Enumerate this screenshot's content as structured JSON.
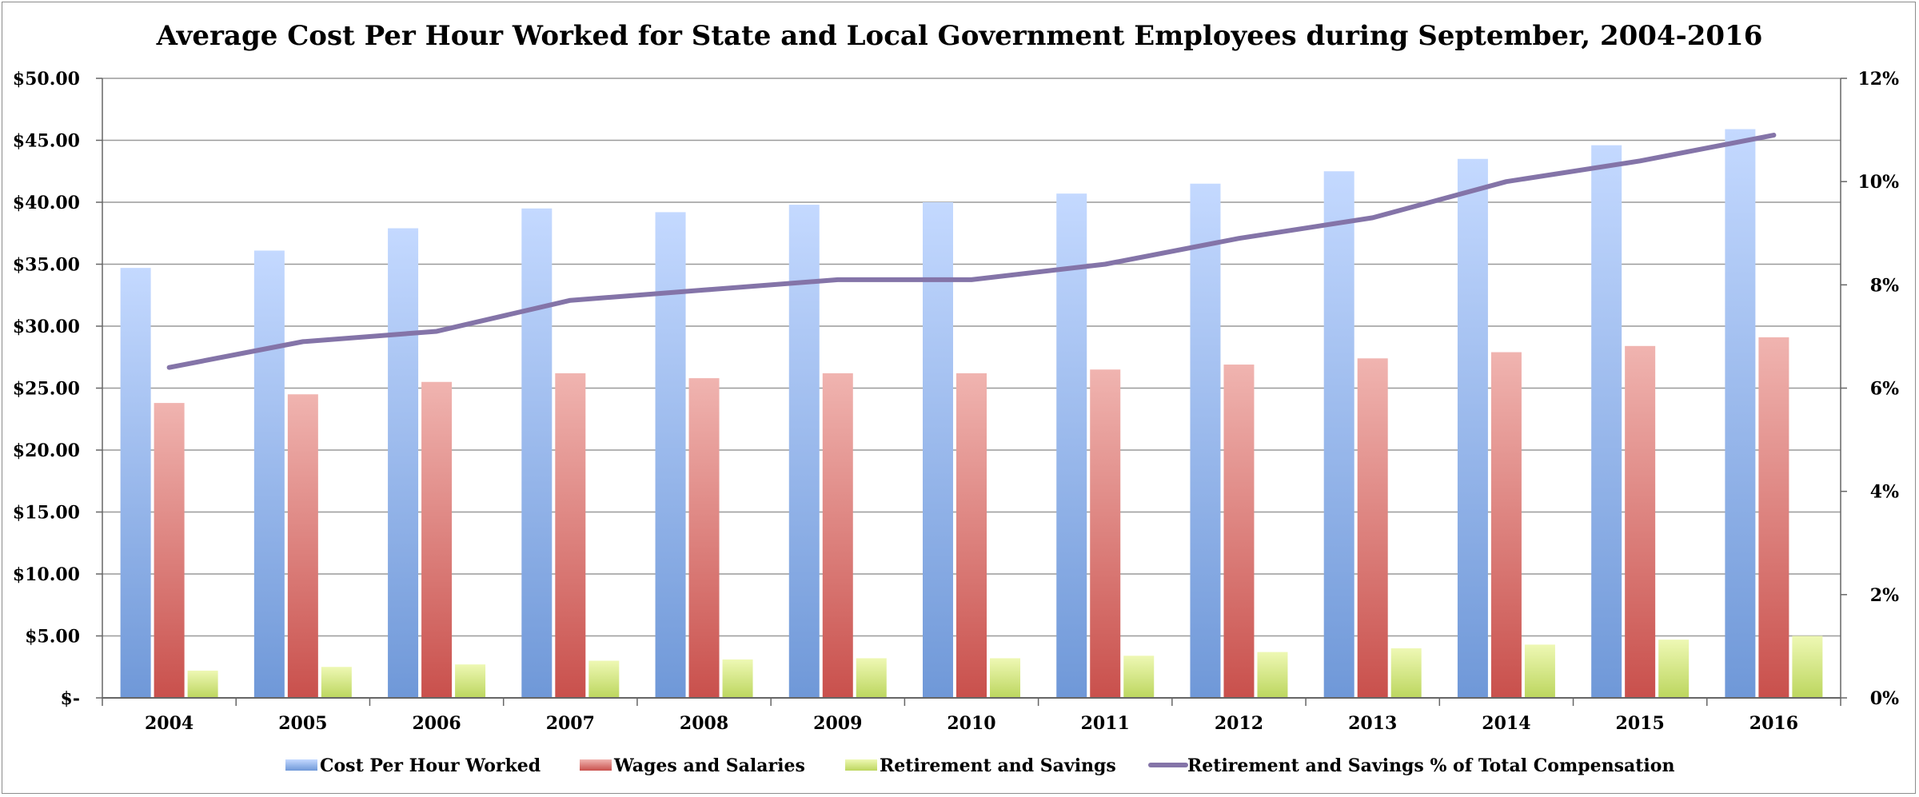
{
  "chart_data": {
    "type": "bar",
    "title": "Average Cost Per Hour Worked for State and Local Government Employees during September, 2004-2016",
    "categories": [
      "2004",
      "2005",
      "2006",
      "2007",
      "2008",
      "2009",
      "2010",
      "2011",
      "2012",
      "2013",
      "2014",
      "2015",
      "2016"
    ],
    "series": [
      {
        "name": "Cost Per Hour Worked",
        "type": "bar",
        "axis": "left",
        "color": "#6f98d8",
        "values": [
          34.7,
          36.1,
          37.9,
          39.5,
          39.2,
          39.8,
          40.0,
          40.7,
          41.5,
          42.5,
          43.5,
          44.6,
          45.9
        ]
      },
      {
        "name": "Wages and Salaries",
        "type": "bar",
        "axis": "left",
        "color": "#c9504c",
        "values": [
          23.8,
          24.5,
          25.5,
          26.2,
          25.8,
          26.2,
          26.2,
          26.5,
          26.9,
          27.4,
          27.9,
          28.4,
          29.1
        ]
      },
      {
        "name": "Retirement and Savings",
        "type": "bar",
        "axis": "left",
        "color": "#bcd65e",
        "values": [
          2.2,
          2.5,
          2.7,
          3.0,
          3.1,
          3.2,
          3.2,
          3.4,
          3.7,
          4.0,
          4.3,
          4.7,
          5.0
        ]
      },
      {
        "name": "Retirement and Savings % of Total Compensation",
        "type": "line",
        "axis": "right",
        "color": "#8474a8",
        "values": [
          6.4,
          6.9,
          7.1,
          7.7,
          7.9,
          8.1,
          8.1,
          8.4,
          8.9,
          9.3,
          10.0,
          10.4,
          10.9
        ]
      }
    ],
    "y_left": {
      "ylim": [
        0,
        50
      ],
      "ticks": [
        0,
        5,
        10,
        15,
        20,
        25,
        30,
        35,
        40,
        45,
        50
      ],
      "tick_labels": [
        "$-",
        "$5.00",
        "$10.00",
        "$15.00",
        "$20.00",
        "$25.00",
        "$30.00",
        "$35.00",
        "$40.00",
        "$45.00",
        "$50.00"
      ]
    },
    "y_right": {
      "ylim": [
        0,
        12
      ],
      "ticks": [
        0,
        2,
        4,
        6,
        8,
        10,
        12
      ],
      "tick_labels": [
        "0%",
        "2%",
        "4%",
        "6%",
        "8%",
        "10%",
        "12%"
      ]
    },
    "grid": true,
    "legend": "bottom"
  }
}
